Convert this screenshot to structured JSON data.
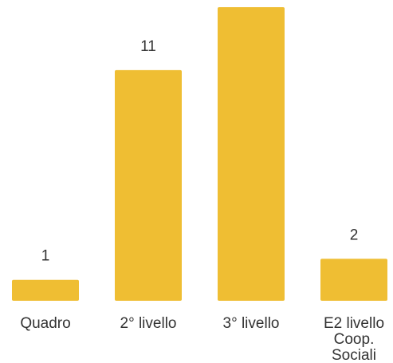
{
  "chart_data": {
    "type": "bar",
    "categories": [
      "Quadro",
      "2° livello",
      "3° livello",
      "E2 livello Coop. Sociali"
    ],
    "category_lines": [
      [
        "Quadro"
      ],
      [
        "2° livello"
      ],
      [
        "3° livello"
      ],
      [
        "E2 livello",
        "Coop.",
        "Sociali"
      ]
    ],
    "values": [
      1,
      11,
      14,
      2
    ],
    "data_labels": [
      "1",
      "11",
      "",
      "2"
    ],
    "bar_color": "#EFBE33",
    "title": "",
    "xlabel": "",
    "ylabel": "",
    "ylim": [
      0,
      14
    ],
    "grid": false,
    "legend": "none"
  }
}
